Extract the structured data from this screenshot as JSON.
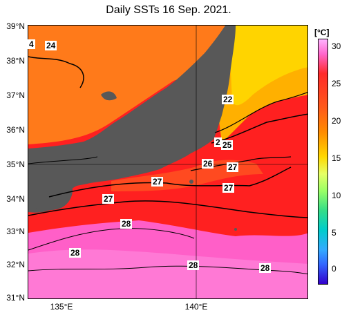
{
  "title": "Daily SSTs 16 Sep. 2021.",
  "lat_labels": [
    "39°N",
    "38°N",
    "37°N",
    "36°N",
    "35°N",
    "34°N",
    "33°N",
    "32°N",
    "31°N"
  ],
  "lon_labels": [
    "135°E",
    "140°E"
  ],
  "contour_labels": [
    "4",
    "24",
    "22",
    "2",
    "25",
    "26",
    "27",
    "27",
    "27",
    "27",
    "28",
    "28",
    "28",
    "28"
  ],
  "colorbar": {
    "unit": "[°C]",
    "ticks": [
      "30",
      "25",
      "20",
      "15",
      "10",
      "5",
      "0"
    ],
    "colors": [
      "#ff99ff",
      "#ff2a2a",
      "#ff7f00",
      "#ffd800",
      "#99ff66",
      "#00cc99",
      "#33aaff",
      "#3300cc"
    ]
  },
  "colors": {
    "land": "#585858",
    "warm_south": "#ff6ec7",
    "red_sea": "#ff2020",
    "orange_sea": "#ff7a1a",
    "yellow_sea": "#ffd400"
  }
}
